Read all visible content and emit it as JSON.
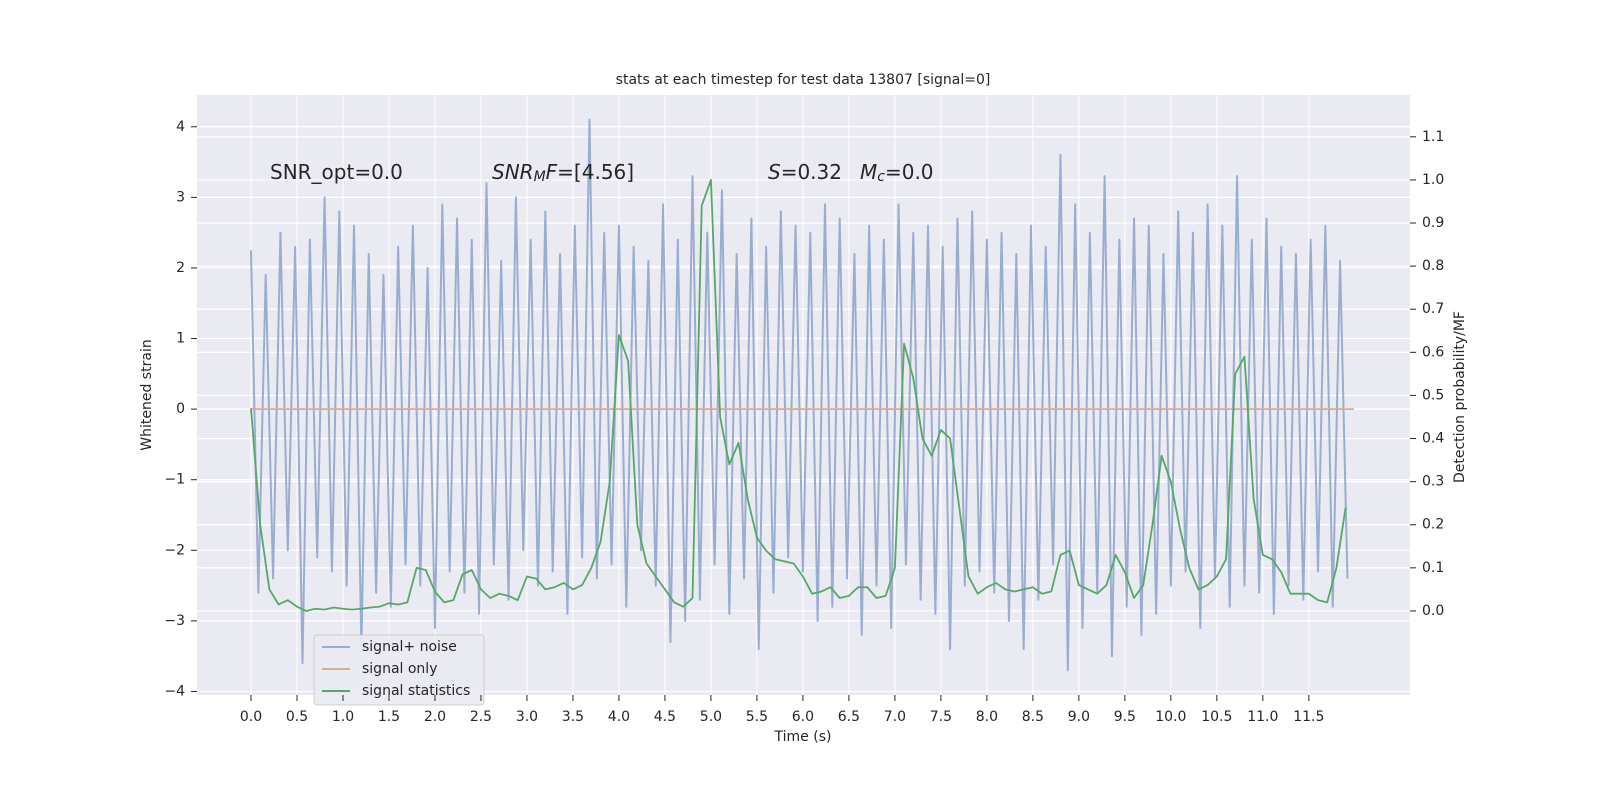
{
  "chart_data": {
    "type": "line",
    "title": "stats at each timestep for test data 13807 [signal=0]",
    "xlabel": "Time (s)",
    "ylabel": "Whitened strain",
    "y2label": "Detection probability/MF",
    "xlim": [
      -0.587,
      12.6
    ],
    "ylim": [
      -4.05,
      4.45
    ],
    "y2lim": [
      -0.195,
      1.197
    ],
    "xticks": [
      {
        "value": 0,
        "label": "0.0"
      },
      0.5,
      {
        "value": 1,
        "label": "1.0"
      },
      1.5,
      {
        "value": 2,
        "label": "2.0"
      },
      2.5,
      {
        "value": 3,
        "label": "3.0"
      },
      3.5,
      {
        "value": 4,
        "label": "4.0"
      },
      4.5,
      {
        "value": 5,
        "label": "5.0"
      },
      5.5,
      {
        "value": 6,
        "label": "6.0"
      },
      6.5,
      {
        "value": 7,
        "label": "7.0"
      },
      7.5,
      {
        "value": 8,
        "label": "8.0"
      },
      8.5,
      {
        "value": 9,
        "label": "9.0"
      },
      9.5,
      {
        "value": 10,
        "label": "10.0"
      },
      10.5,
      {
        "value": 11,
        "label": "11.0"
      },
      11.5
    ],
    "yticks": [
      {
        "value": -4,
        "label": "−4"
      },
      {
        "value": -3,
        "label": "−3"
      },
      {
        "value": -2,
        "label": "−2"
      },
      {
        "value": -1,
        "label": "−1"
      },
      0,
      1,
      2,
      3,
      4
    ],
    "y2ticks": [
      {
        "value": 0,
        "label": "0.0"
      },
      0.1,
      0.2,
      0.3,
      0.4,
      0.5,
      0.6,
      0.7,
      0.8,
      0.9,
      {
        "value": 1,
        "label": "1.0"
      },
      1.1
    ],
    "grid": true,
    "legend": "lower left",
    "annotations": [
      [
        {
          "text": "SNR_opt=0.0"
        }
      ],
      [
        {
          "text": "SNR",
          "style": "italic"
        },
        {
          "text": "M",
          "style": "sub"
        },
        {
          "text": "F",
          "style": "italic"
        },
        {
          "text": "=[4.56]"
        }
      ],
      [
        {
          "text": "S",
          "style": "italic"
        },
        {
          "text": "=0.32"
        }
      ],
      [
        {
          "text": "M",
          "style": "italic"
        },
        {
          "text": "c",
          "style": "sub"
        },
        {
          "text": "=0.0"
        }
      ]
    ],
    "series": [
      {
        "name": "signal+ noise",
        "color": "#9aadd1",
        "axis": "y",
        "x": [
          0,
          0.08,
          0.16,
          0.24,
          0.32,
          0.4,
          0.48,
          0.56,
          0.64,
          0.72,
          0.8,
          0.88,
          0.96,
          1.04,
          1.12,
          1.2,
          1.28,
          1.36,
          1.44,
          1.52,
          1.6,
          1.68,
          1.76,
          1.84,
          1.92,
          2,
          2.08,
          2.16,
          2.24,
          2.32,
          2.4,
          2.48,
          2.56,
          2.64,
          2.72,
          2.8,
          2.88,
          2.96,
          3.04,
          3.12,
          3.2,
          3.28,
          3.36,
          3.44,
          3.52,
          3.6,
          3.68,
          3.76,
          3.84,
          3.92,
          4,
          4.08,
          4.16,
          4.24,
          4.32,
          4.4,
          4.48,
          4.56,
          4.64,
          4.72,
          4.8,
          4.88,
          4.96,
          5.04,
          5.12,
          5.2,
          5.28,
          5.36,
          5.44,
          5.52,
          5.6,
          5.68,
          5.76,
          5.84,
          5.92,
          6,
          6.08,
          6.16,
          6.24,
          6.32,
          6.4,
          6.48,
          6.56,
          6.64,
          6.72,
          6.8,
          6.88,
          6.96,
          7.04,
          7.12,
          7.2,
          7.28,
          7.36,
          7.44,
          7.52,
          7.6,
          7.68,
          7.76,
          7.84,
          7.92,
          8,
          8.08,
          8.16,
          8.24,
          8.32,
          8.4,
          8.48,
          8.56,
          8.64,
          8.72,
          8.8,
          8.88,
          8.96,
          9.04,
          9.12,
          9.2,
          9.28,
          9.36,
          9.44,
          9.52,
          9.6,
          9.68,
          9.76,
          9.84,
          9.92,
          10,
          10.08,
          10.16,
          10.24,
          10.32,
          10.4,
          10.48,
          10.56,
          10.64,
          10.72,
          10.8,
          10.88,
          10.96,
          11.04,
          11.12,
          11.2,
          11.28,
          11.36,
          11.44,
          11.52,
          11.6,
          11.68,
          11.76,
          11.84,
          11.92
        ],
        "values": [
          2.25,
          -2.6,
          1.9,
          -2.4,
          2.5,
          -2.0,
          2.3,
          -3.6,
          2.4,
          -2.1,
          3.0,
          -2.3,
          2.8,
          -2.5,
          2.6,
          -3.4,
          2.2,
          -2.6,
          1.9,
          -2.8,
          2.3,
          -2.2,
          2.6,
          -2.5,
          2.0,
          -3.1,
          2.9,
          -2.3,
          2.7,
          -2.6,
          2.4,
          -2.9,
          3.2,
          -2.2,
          2.1,
          -2.7,
          3.0,
          -2.0,
          2.4,
          -2.5,
          2.8,
          -2.3,
          2.2,
          -2.9,
          2.6,
          -2.1,
          4.1,
          -2.4,
          2.5,
          -2.2,
          2.6,
          -2.8,
          2.3,
          -2.0,
          2.1,
          -2.5,
          2.9,
          -3.3,
          2.4,
          -3.0,
          3.3,
          -2.7,
          2.5,
          -2.2,
          3.1,
          -2.9,
          2.2,
          -2.4,
          2.7,
          -3.4,
          2.3,
          -2.6,
          2.8,
          -2.1,
          2.6,
          -2.3,
          2.5,
          -3.0,
          2.9,
          -2.8,
          2.7,
          -2.4,
          2.2,
          -3.2,
          2.6,
          -2.5,
          2.4,
          -3.1,
          2.9,
          -2.2,
          2.5,
          -2.7,
          2.6,
          -2.9,
          2.3,
          -3.4,
          2.7,
          -2.5,
          2.8,
          -2.3,
          2.4,
          -2.6,
          2.5,
          -3.0,
          2.2,
          -3.4,
          2.6,
          -2.7,
          2.3,
          -2.2,
          3.6,
          -3.7,
          2.9,
          -3.1,
          2.5,
          -2.6,
          3.3,
          -3.5,
          2.4,
          -2.8,
          2.7,
          -3.2,
          2.6,
          -2.9,
          2.2,
          -2.5,
          2.8,
          -2.3,
          2.5,
          -3.1,
          2.9,
          -2.4,
          2.6,
          -2.8,
          3.3,
          -2.5,
          2.4,
          -2.6,
          2.7,
          -2.9,
          2.3,
          -2.5,
          2.2,
          -2.7,
          2.4,
          -2.3,
          2.6,
          -2.8,
          2.1,
          -2.4
        ]
      },
      {
        "name": "signal only",
        "color": "#e3a98a",
        "axis": "y",
        "x": [
          0,
          11.99
        ],
        "values": [
          0,
          0
        ]
      },
      {
        "name": "signal statistics",
        "color": "#55a868",
        "axis": "y2",
        "x": [
          0,
          0.1,
          0.2,
          0.3,
          0.4,
          0.5,
          0.6,
          0.7,
          0.8,
          0.9,
          1,
          1.1,
          1.2,
          1.3,
          1.4,
          1.5,
          1.6,
          1.7,
          1.8,
          1.9,
          2,
          2.1,
          2.2,
          2.3,
          2.4,
          2.5,
          2.6,
          2.7,
          2.8,
          2.9,
          3,
          3.1,
          3.2,
          3.3,
          3.4,
          3.5,
          3.6,
          3.7,
          3.8,
          3.9,
          4,
          4.1,
          4.2,
          4.3,
          4.4,
          4.5,
          4.6,
          4.7,
          4.8,
          4.9,
          5,
          5.1,
          5.2,
          5.3,
          5.4,
          5.5,
          5.6,
          5.7,
          5.8,
          5.9,
          6,
          6.1,
          6.2,
          6.3,
          6.4,
          6.5,
          6.6,
          6.7,
          6.8,
          6.9,
          7,
          7.1,
          7.2,
          7.3,
          7.4,
          7.5,
          7.6,
          7.7,
          7.8,
          7.9,
          8,
          8.1,
          8.2,
          8.3,
          8.4,
          8.5,
          8.6,
          8.7,
          8.8,
          8.9,
          9,
          9.1,
          9.2,
          9.3,
          9.4,
          9.5,
          9.6,
          9.7,
          9.8,
          9.9,
          10,
          10.1,
          10.2,
          10.3,
          10.4,
          10.5,
          10.6,
          10.7,
          10.8,
          10.9,
          11,
          11.1,
          11.2,
          11.3,
          11.4,
          11.5,
          11.6,
          11.7,
          11.8,
          11.9
        ],
        "values": [
          0.47,
          0.2,
          0.05,
          0.015,
          0.025,
          0.01,
          0.0,
          0.005,
          0.003,
          0.008,
          0.005,
          0.003,
          0.005,
          0.008,
          0.01,
          0.018,
          0.015,
          0.02,
          0.1,
          0.095,
          0.045,
          0.02,
          0.025,
          0.085,
          0.095,
          0.05,
          0.03,
          0.04,
          0.035,
          0.025,
          0.08,
          0.075,
          0.05,
          0.055,
          0.065,
          0.05,
          0.06,
          0.1,
          0.16,
          0.3,
          0.64,
          0.58,
          0.2,
          0.11,
          0.08,
          0.05,
          0.02,
          0.01,
          0.03,
          0.94,
          1.0,
          0.45,
          0.34,
          0.39,
          0.26,
          0.17,
          0.14,
          0.12,
          0.115,
          0.11,
          0.08,
          0.04,
          0.045,
          0.055,
          0.03,
          0.035,
          0.055,
          0.055,
          0.03,
          0.035,
          0.1,
          0.62,
          0.54,
          0.4,
          0.36,
          0.42,
          0.4,
          0.24,
          0.08,
          0.04,
          0.055,
          0.065,
          0.05,
          0.045,
          0.05,
          0.055,
          0.04,
          0.045,
          0.13,
          0.14,
          0.06,
          0.05,
          0.04,
          0.06,
          0.13,
          0.09,
          0.03,
          0.06,
          0.2,
          0.36,
          0.3,
          0.19,
          0.1,
          0.05,
          0.06,
          0.08,
          0.12,
          0.55,
          0.59,
          0.26,
          0.13,
          0.12,
          0.09,
          0.04,
          0.04,
          0.04,
          0.025,
          0.02,
          0.1,
          0.24
        ]
      }
    ]
  }
}
